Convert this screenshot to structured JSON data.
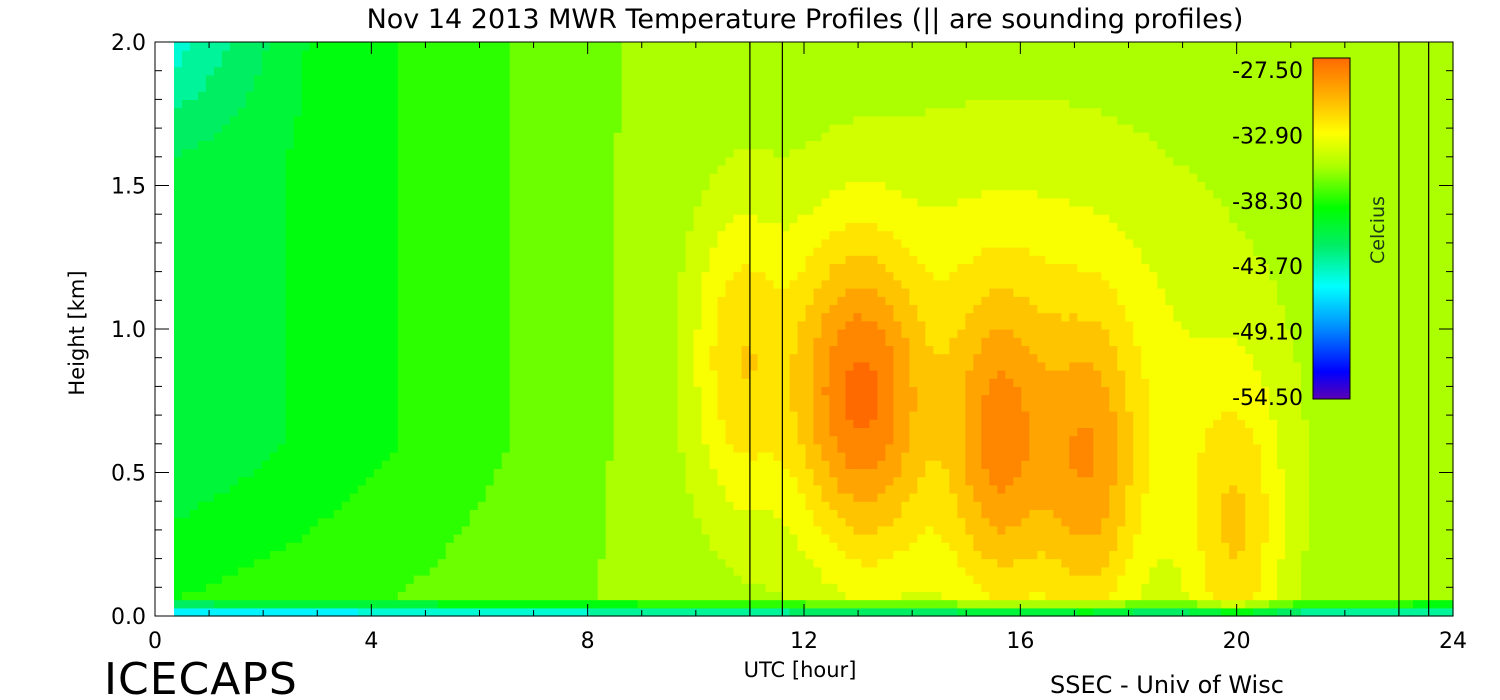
{
  "chart_data": {
    "type": "heatmap",
    "title": "Nov 14 2013 MWR Temperature Profiles (|| are sounding profiles)",
    "xlabel": "UTC [hour]",
    "ylabel": "Height [km]",
    "xlim": [
      0,
      24
    ],
    "ylim": [
      0,
      2.0
    ],
    "x_ticks": [
      "0",
      "4",
      "8",
      "12",
      "16",
      "20",
      "24"
    ],
    "y_ticks": [
      "0.0",
      "0.5",
      "1.0",
      "1.5",
      "2.0"
    ],
    "data_start_hour": 0.35,
    "data_end_hour": 24,
    "sounding_profile_hours": [
      11.0,
      11.6,
      23.0,
      23.55
    ],
    "warm_cores": [
      {
        "hour": 10.8,
        "height_km": 0.9,
        "celsius": -29.5
      },
      {
        "hour": 12.5,
        "height_km": 0.8,
        "celsius": -29.0
      },
      {
        "hour": 13.4,
        "height_km": 0.75,
        "celsius": -28.5
      },
      {
        "hour": 15.6,
        "height_km": 0.6,
        "celsius": -28.5
      },
      {
        "hour": 17.3,
        "height_km": 0.5,
        "celsius": -28.8
      },
      {
        "hour": 20.0,
        "height_km": 0.28,
        "celsius": -29.5
      }
    ],
    "colorbar": {
      "label": "Celcius",
      "ticks": [
        "-27.50",
        "-32.90",
        "-38.30",
        "-43.70",
        "-49.10",
        "-54.50"
      ],
      "range": [
        -54.5,
        -27.5
      ]
    }
  },
  "footer": {
    "project": "ICECAPS",
    "credit": "SSEC - Univ of Wisc"
  }
}
